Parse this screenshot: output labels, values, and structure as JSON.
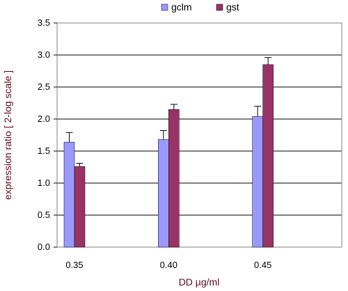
{
  "chart_data": {
    "type": "bar",
    "categories": [
      "0.35",
      "0.40",
      "0.45"
    ],
    "series": [
      {
        "name": "gclm",
        "color": "#9999ff",
        "values": [
          1.64,
          1.68,
          2.04
        ],
        "errors": [
          0.15,
          0.14,
          0.16
        ]
      },
      {
        "name": "gst",
        "color": "#993366",
        "values": [
          1.26,
          2.15,
          2.85
        ],
        "errors": [
          0.05,
          0.08,
          0.11
        ]
      }
    ],
    "xlabel": "DD µg/ml",
    "ylabel": "expression ratio [ 2-log scale ]",
    "ylim": [
      0,
      3.5
    ],
    "yticks": [
      "0.0",
      "0.5",
      "1.0",
      "1.5",
      "2.0",
      "2.5",
      "3.0",
      "3.5"
    ],
    "grid": true,
    "legend": "top"
  }
}
